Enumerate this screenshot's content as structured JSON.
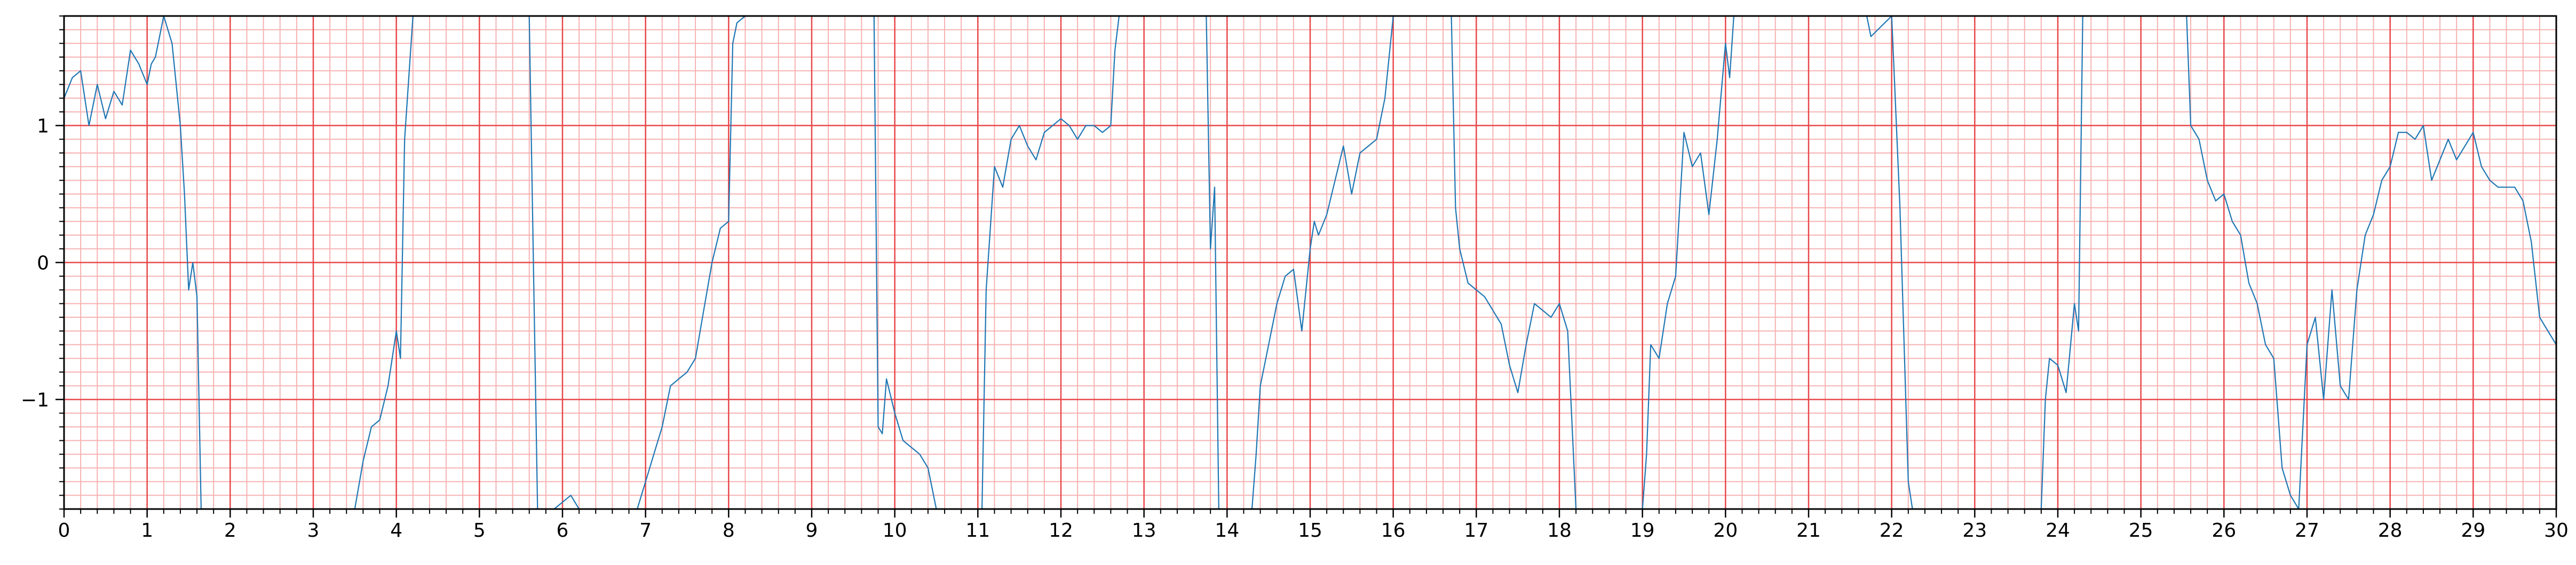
{
  "chart_data": {
    "type": "line",
    "title": "",
    "xlabel": "",
    "ylabel": "",
    "xlim": [
      0,
      30
    ],
    "ylim": [
      -1.8,
      1.8
    ],
    "x_ticks": [
      0,
      1,
      2,
      3,
      4,
      5,
      6,
      7,
      8,
      9,
      10,
      11,
      12,
      13,
      14,
      15,
      16,
      17,
      18,
      19,
      20,
      21,
      22,
      23,
      24,
      25,
      26,
      27,
      28,
      29,
      30
    ],
    "x_tick_labels": [
      "0",
      "1",
      "2",
      "3",
      "4",
      "5",
      "6",
      "7",
      "8",
      "9",
      "10",
      "11",
      "12",
      "13",
      "14",
      "15",
      "16",
      "17",
      "18",
      "19",
      "20",
      "21",
      "22",
      "23",
      "24",
      "25",
      "26",
      "27",
      "28",
      "29",
      "30"
    ],
    "y_ticks": [
      -1,
      0,
      1
    ],
    "y_tick_labels": [
      "−1",
      "0",
      "1"
    ],
    "grid": {
      "major": true,
      "minor": true,
      "major_color": "#e8474a",
      "minor_color": "#f6b2b2",
      "x_minor_step": 0.2,
      "y_minor_step": 0.1
    },
    "series": [
      {
        "color": "#1f77b4",
        "x": [
          0,
          0.1,
          0.2,
          0.3,
          0.4,
          0.5,
          0.6,
          0.7,
          0.8,
          0.9,
          1.0,
          1.05,
          1.1,
          1.2,
          1.3,
          1.4,
          1.45,
          1.5,
          1.55,
          1.6,
          1.65,
          3.5,
          3.6,
          3.7,
          3.8,
          3.9,
          4.0,
          4.05,
          4.1,
          4.2,
          5.6,
          5.65,
          5.7,
          5.9,
          6.1,
          6.2,
          6.9,
          7.0,
          7.1,
          7.2,
          7.3,
          7.4,
          7.5,
          7.6,
          7.7,
          7.8,
          7.9,
          8.0,
          8.05,
          8.1,
          8.2,
          8.3,
          9.75,
          9.8,
          9.85,
          9.9,
          10.0,
          10.1,
          10.2,
          10.3,
          10.4,
          10.5,
          11.05,
          11.1,
          11.2,
          11.3,
          11.4,
          11.5,
          11.6,
          11.7,
          11.8,
          11.9,
          12.0,
          12.1,
          12.2,
          12.3,
          12.4,
          12.5,
          12.6,
          12.65,
          12.7,
          12.8,
          13.75,
          13.8,
          13.85,
          13.9,
          14.3,
          14.35,
          14.4,
          14.5,
          14.6,
          14.7,
          14.8,
          14.9,
          15.0,
          15.05,
          15.1,
          15.2,
          15.3,
          15.4,
          15.5,
          15.6,
          15.7,
          15.8,
          15.9,
          16.0,
          16.7,
          16.75,
          16.8,
          16.9,
          17.0,
          17.1,
          17.2,
          17.3,
          17.4,
          17.5,
          17.6,
          17.7,
          17.8,
          17.9,
          18.0,
          18.1,
          18.2,
          19.0,
          19.05,
          19.1,
          19.2,
          19.3,
          19.4,
          19.5,
          19.6,
          19.7,
          19.8,
          19.9,
          20.0,
          20.05,
          20.1,
          21.7,
          21.75,
          22.0,
          22.1,
          22.2,
          22.25,
          22.3,
          23.8,
          23.85,
          23.9,
          24.0,
          24.1,
          24.2,
          24.25,
          24.3,
          25.55,
          25.6,
          25.7,
          25.8,
          25.9,
          26.0,
          26.1,
          26.2,
          26.3,
          26.4,
          26.5,
          26.6,
          26.7,
          26.8,
          26.9,
          27.0,
          27.1,
          27.2,
          27.3,
          27.4,
          27.5,
          27.6,
          27.7,
          27.8,
          27.9,
          28.0,
          28.1,
          28.2,
          28.3,
          28.4,
          28.5,
          28.6,
          28.7,
          28.8,
          28.9,
          29.0,
          29.1,
          29.2,
          29.3,
          29.4,
          29.5,
          29.6,
          29.7,
          29.8,
          29.9,
          30.0
        ],
        "y": [
          1.2,
          1.35,
          1.4,
          1.0,
          1.3,
          1.05,
          1.25,
          1.15,
          1.55,
          1.45,
          1.3,
          1.45,
          1.5,
          1.8,
          1.6,
          1.0,
          0.5,
          -0.2,
          0.0,
          -0.25,
          -1.8,
          -1.8,
          -1.45,
          -1.2,
          -1.15,
          -0.9,
          -0.5,
          -0.7,
          0.9,
          1.8,
          1.8,
          0.0,
          -1.8,
          -1.8,
          -1.7,
          -1.8,
          -1.8,
          -1.6,
          -1.4,
          -1.2,
          -0.9,
          -0.85,
          -0.8,
          -0.7,
          -0.35,
          0.0,
          0.25,
          0.3,
          1.6,
          1.75,
          1.8,
          1.8,
          1.8,
          -1.2,
          -1.25,
          -0.85,
          -1.1,
          -1.3,
          -1.35,
          -1.4,
          -1.5,
          -1.8,
          -1.8,
          -0.2,
          0.7,
          0.55,
          0.9,
          1.0,
          0.85,
          0.75,
          0.95,
          1.0,
          1.05,
          1.0,
          0.9,
          1.0,
          1.0,
          0.95,
          1.0,
          1.55,
          1.8,
          1.8,
          1.8,
          0.1,
          0.55,
          -1.8,
          -1.8,
          -1.4,
          -0.9,
          -0.6,
          -0.3,
          -0.1,
          -0.05,
          -0.5,
          0.1,
          0.3,
          0.2,
          0.35,
          0.6,
          0.85,
          0.5,
          0.8,
          0.85,
          0.9,
          1.2,
          1.8,
          1.8,
          0.4,
          0.1,
          -0.15,
          -0.2,
          -0.25,
          -0.35,
          -0.45,
          -0.75,
          -0.95,
          -0.6,
          -0.3,
          -0.35,
          -0.4,
          -0.3,
          -0.5,
          -1.8,
          -1.8,
          -1.4,
          -0.6,
          -0.7,
          -0.3,
          -0.1,
          0.95,
          0.7,
          0.8,
          0.35,
          0.9,
          1.6,
          1.35,
          1.8,
          1.8,
          1.65,
          1.8,
          0.4,
          -1.6,
          -1.8,
          -1.8,
          -1.8,
          -1.0,
          -0.7,
          -0.75,
          -0.95,
          -0.3,
          -0.5,
          1.8,
          1.8,
          1.0,
          0.9,
          0.6,
          0.45,
          0.5,
          0.3,
          0.2,
          -0.15,
          -0.3,
          -0.6,
          -0.7,
          -1.5,
          -1.7,
          -1.8,
          -0.6,
          -0.4,
          -1.0,
          -0.2,
          -0.9,
          -1.0,
          -0.2,
          0.2,
          0.35,
          0.6,
          0.7,
          0.95,
          0.95,
          0.9,
          1.0,
          0.6,
          0.75,
          0.9,
          0.75,
          0.85,
          0.95,
          0.7,
          0.6,
          0.55,
          0.55,
          0.55,
          0.45,
          0.15,
          -0.4,
          -0.5,
          -0.6
        ]
      }
    ]
  }
}
